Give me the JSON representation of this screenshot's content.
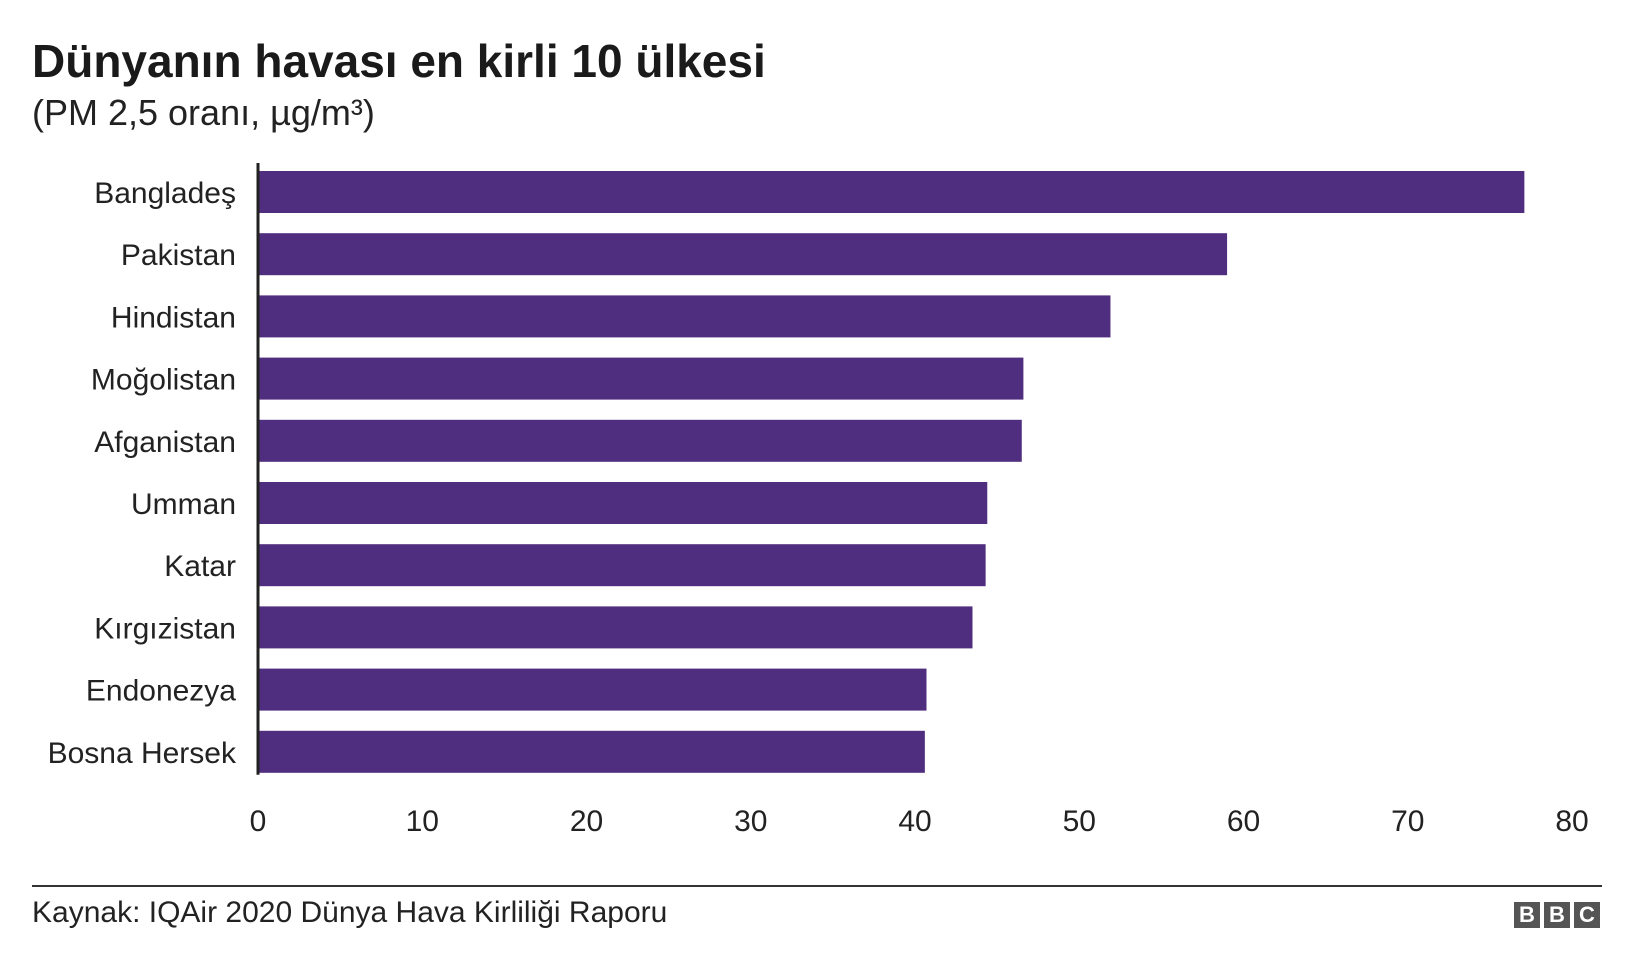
{
  "header": {
    "title": "Dünyanın havası en kirli 10 ülkesi",
    "subtitle": "(PM 2,5 oranı, µg/m³)"
  },
  "footer": {
    "source": "Kaynak: IQAir 2020 Dünya Hava Kirliliği Raporu",
    "logo_letters": [
      "B",
      "B",
      "C"
    ]
  },
  "colors": {
    "bar": "#4f2d7f",
    "axis": "#222222"
  },
  "chart_data": {
    "type": "bar",
    "orientation": "horizontal",
    "categories": [
      "Bangladeş",
      "Pakistan",
      "Hindistan",
      "Moğolistan",
      "Afganistan",
      "Umman",
      "Katar",
      "Kırgızistan",
      "Endonezya",
      "Bosna Hersek"
    ],
    "values": [
      77.1,
      59.0,
      51.9,
      46.6,
      46.5,
      44.4,
      44.3,
      43.5,
      40.7,
      40.6
    ],
    "xlim": [
      0,
      80
    ],
    "xticks": [
      0,
      10,
      20,
      30,
      40,
      50,
      60,
      70,
      80
    ],
    "grid": false
  }
}
